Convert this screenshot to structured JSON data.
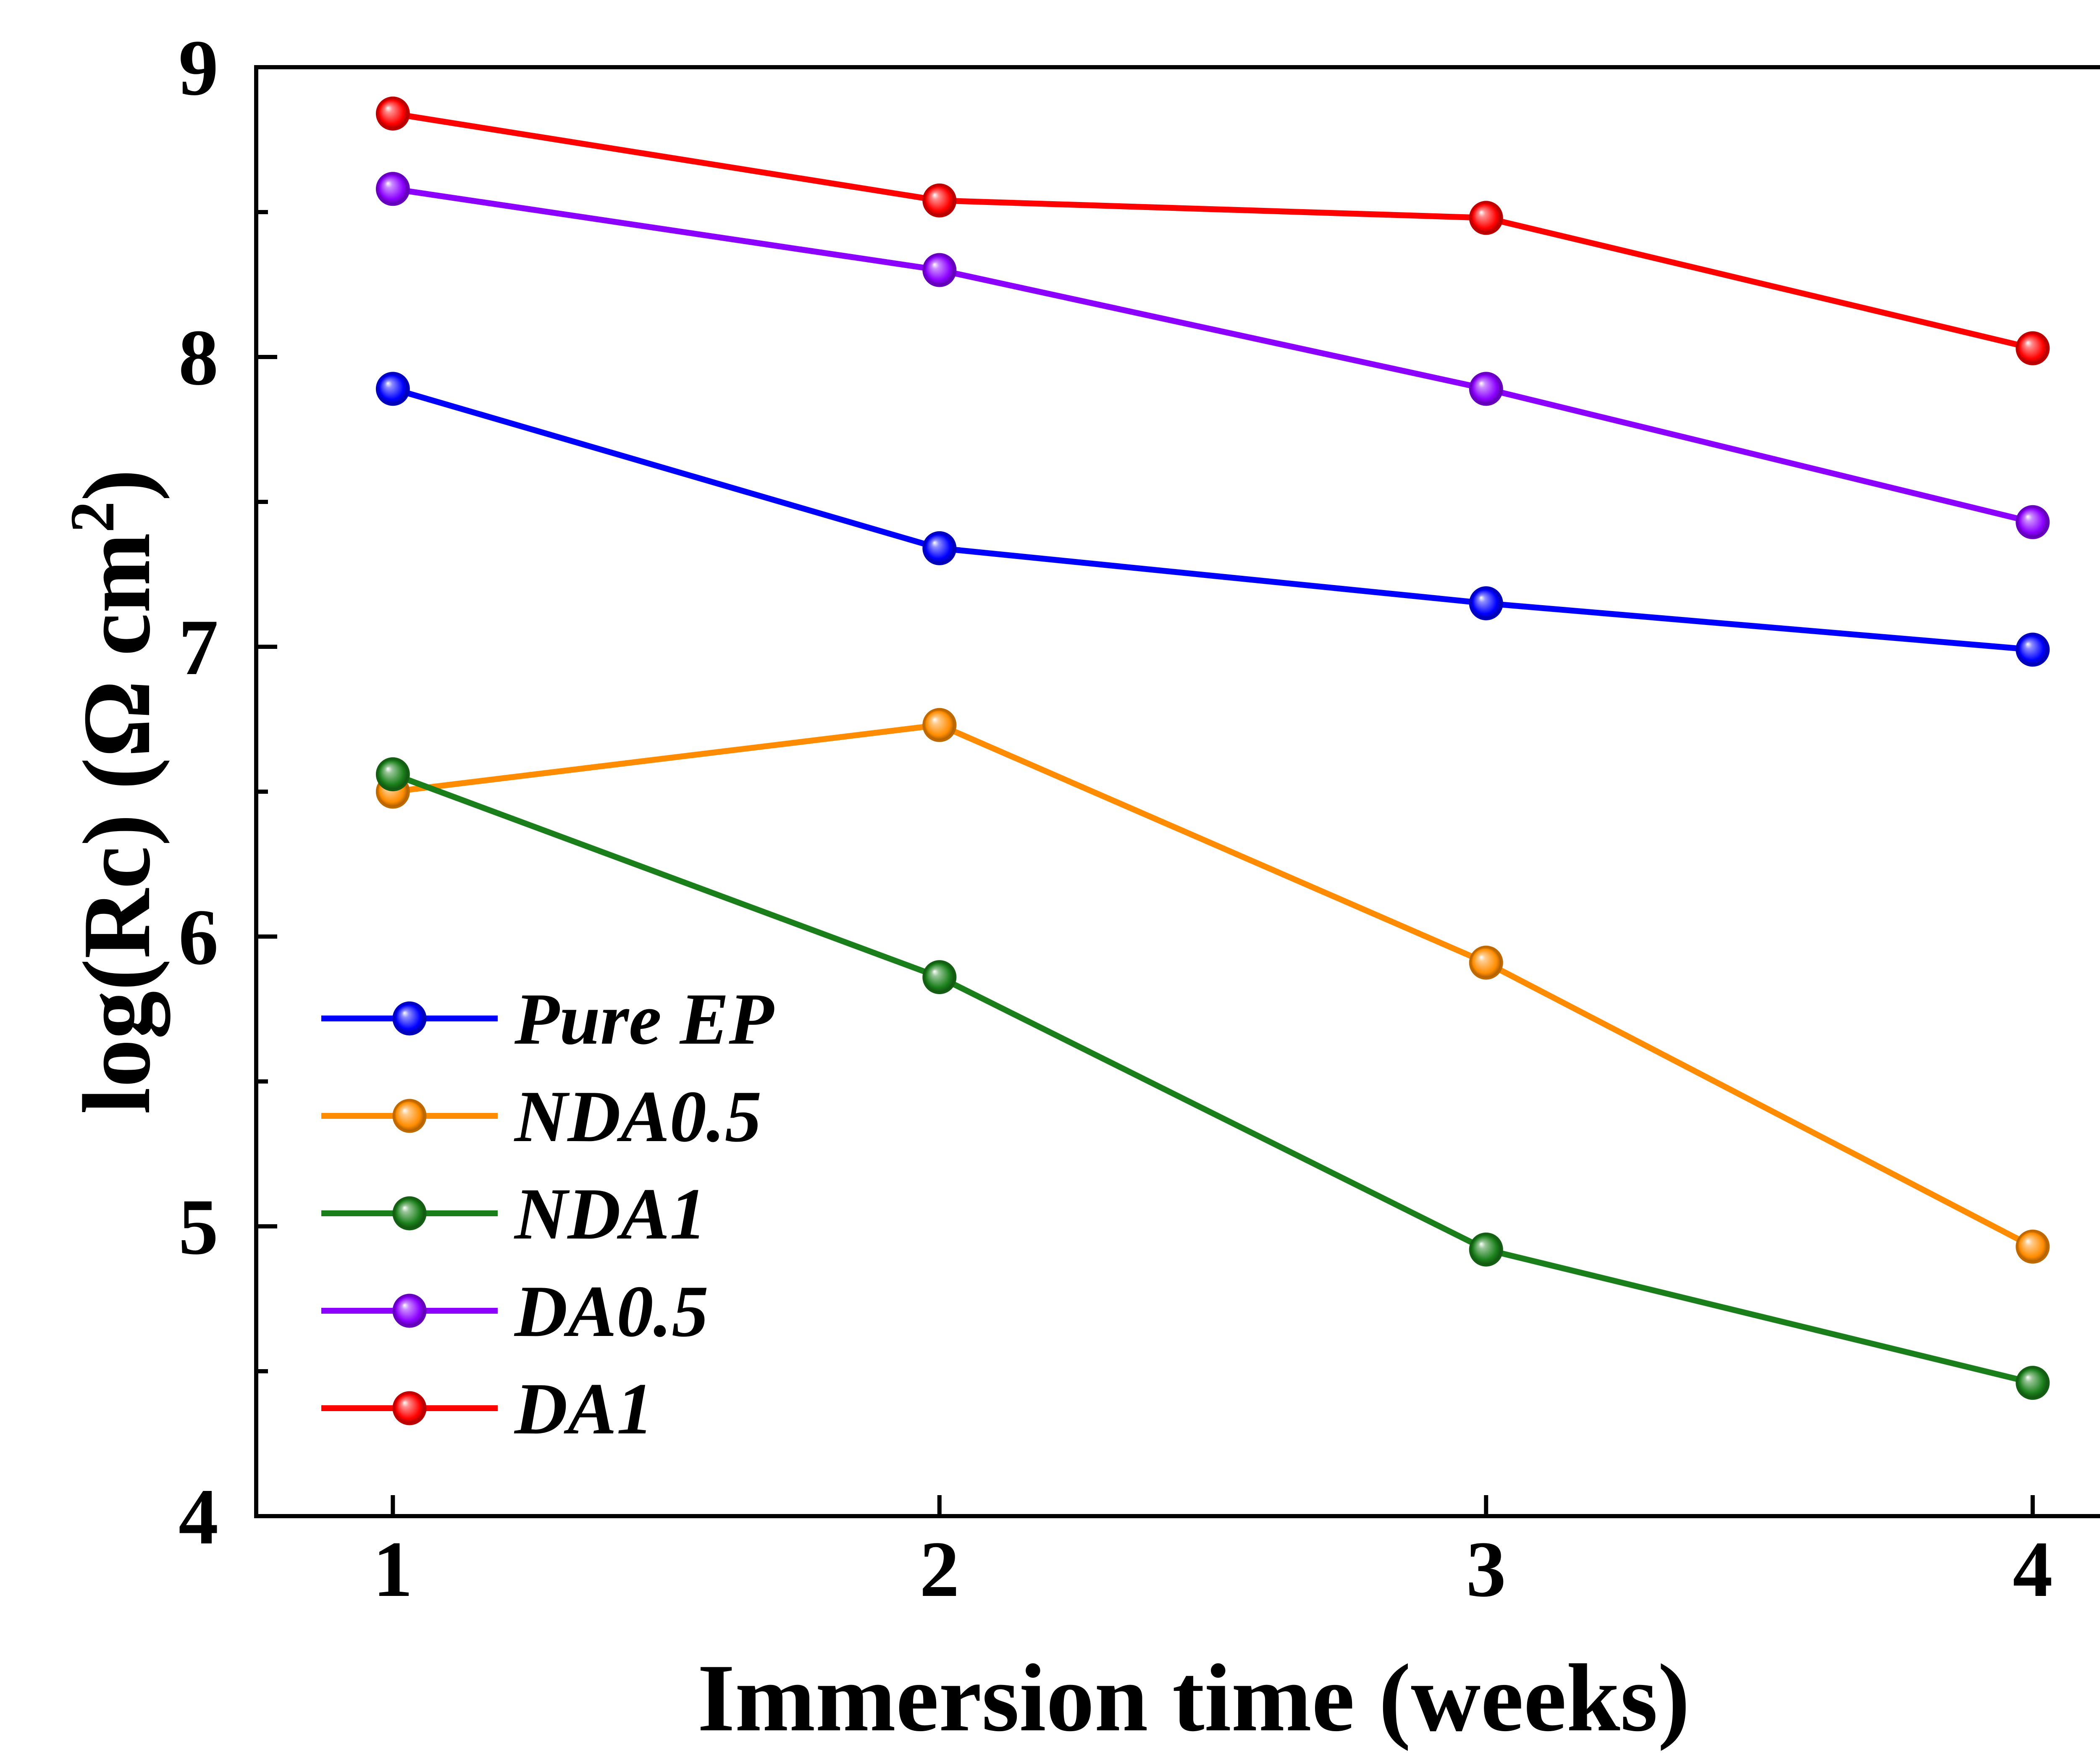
{
  "chart_data": {
    "type": "line",
    "xlabel": "Immersion time (weeks)",
    "ylabel": "log(Rc) (Ω cm",
    "ylabel_sup": "2",
    "ylabel_close": ")",
    "x": [
      1,
      2,
      3,
      4
    ],
    "x_ticks": [
      "1",
      "2",
      "3",
      "4"
    ],
    "xlim": [
      0.75,
      4.18
    ],
    "ylim": [
      4,
      9
    ],
    "y_ticks": [
      "4",
      "5",
      "6",
      "7",
      "8",
      "9"
    ],
    "y_minor_ticks": [
      4.5,
      5.5,
      6.5,
      7.5,
      8.5
    ],
    "grid": false,
    "legend_position": "lower-left",
    "series": [
      {
        "name": "Pure EP",
        "color": "#0000ff",
        "values": [
          7.89,
          7.34,
          7.15,
          6.99
        ]
      },
      {
        "name": "NDA0.5",
        "color": "#ff8c00",
        "values": [
          6.5,
          6.73,
          5.91,
          4.93
        ]
      },
      {
        "name": "NDA1",
        "color": "#1a7f1a",
        "values": [
          6.56,
          5.86,
          4.92,
          4.46
        ]
      },
      {
        "name": "DA0.5",
        "color": "#8b00ff",
        "values": [
          8.58,
          8.3,
          7.89,
          7.43
        ]
      },
      {
        "name": "DA1",
        "color": "#ff0000",
        "values": [
          8.84,
          8.54,
          8.48,
          8.03
        ]
      }
    ]
  }
}
